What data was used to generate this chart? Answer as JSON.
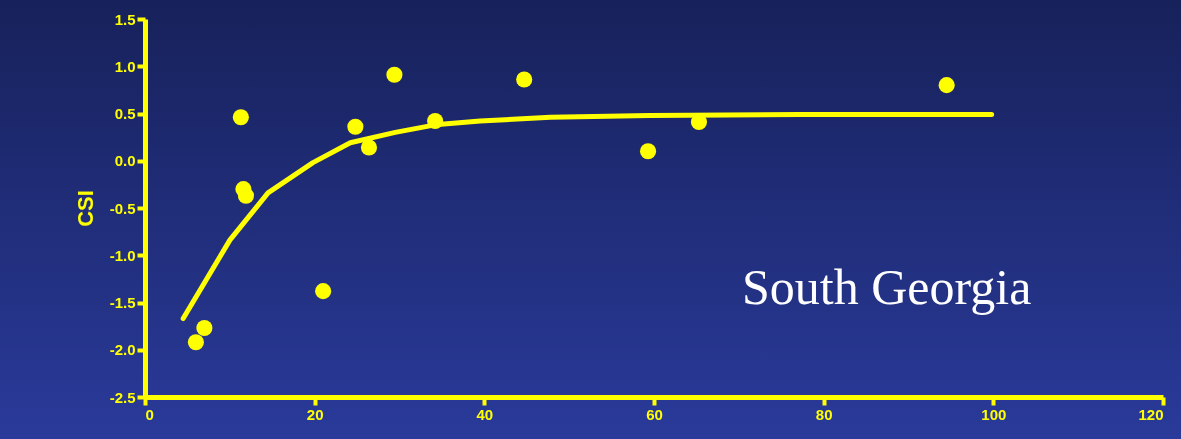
{
  "chart_data": {
    "type": "scatter",
    "ylabel": "CSI",
    "annotations": [
      "South Georgia"
    ],
    "xlim": [
      0,
      120
    ],
    "xticks": [
      0,
      20,
      40,
      60,
      80,
      100,
      120
    ],
    "ylim": [
      -2.5,
      1.5
    ],
    "yticks": [
      {
        "value": -2.5,
        "label": "-2.5"
      },
      {
        "value": -2,
        "label": "-2.0"
      },
      {
        "value": -1.5,
        "label": "-1.5"
      },
      {
        "value": -1,
        "label": "-1.0"
      },
      {
        "value": -0.5,
        "label": "-0.5"
      },
      {
        "value": 0,
        "label": "0.0"
      },
      {
        "value": 0.5,
        "label": "0.5"
      },
      {
        "value": 1,
        "label": "1.0"
      },
      {
        "value": 1.5,
        "label": "1.5"
      }
    ],
    "grid": false,
    "series": [
      {
        "marker": "circle",
        "color": "#ffff00",
        "x": [
          6.0,
          7.0,
          11.3,
          11.6,
          11.9,
          21.0,
          24.8,
          26.4,
          29.4,
          34.2,
          44.7,
          59.3,
          65.3,
          94.5
        ],
        "values": [
          -1.92,
          -1.77,
          0.46,
          -0.3,
          -0.37,
          -1.38,
          0.36,
          0.14,
          0.91,
          0.42,
          0.86,
          0.1,
          0.41,
          0.8
        ]
      },
      {
        "type": "line",
        "color": "#ffff00",
        "x": [
          4.5,
          10,
          14.5,
          19.8,
          24.2,
          29.5,
          34.2,
          39.5,
          47.8,
          59.5,
          77.2,
          99.8
        ],
        "values": [
          -1.67,
          -0.84,
          -0.34,
          -0.02,
          0.19,
          0.3,
          0.38,
          0.42,
          0.46,
          0.48,
          0.49,
          0.49
        ]
      }
    ]
  }
}
